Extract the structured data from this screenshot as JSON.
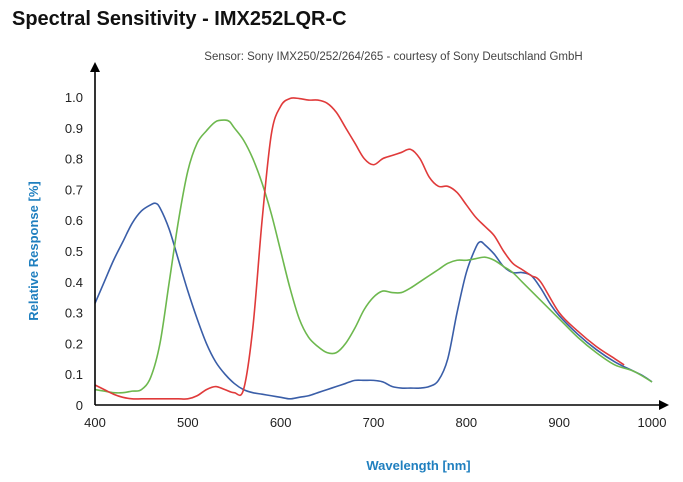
{
  "page_title": "Spectral Sensitivity - IMX252LQR-C",
  "chart_data": {
    "type": "line",
    "subtitle": "Sensor: Sony IMX250/252/264/265 - courtesy of Sony Deutschland GmbH",
    "xlabel": "Wavelength [nm]",
    "ylabel": "Relative Response [%]",
    "xlim": [
      400,
      1000
    ],
    "ylim": [
      0,
      1.0
    ],
    "xticks": [
      "400",
      "500",
      "600",
      "700",
      "800",
      "900",
      "1000"
    ],
    "yticks": [
      "0",
      "0.1",
      "0.2",
      "0.3",
      "0.4",
      "0.5",
      "0.6",
      "0.7",
      "0.8",
      "0.9",
      "1.0"
    ],
    "grid": false,
    "series": [
      {
        "color": "#3a5ea8",
        "x": [
          400,
          410,
          420,
          430,
          440,
          450,
          460,
          465,
          470,
          480,
          490,
          500,
          510,
          520,
          530,
          540,
          550,
          560,
          570,
          580,
          590,
          600,
          610,
          620,
          630,
          640,
          650,
          660,
          670,
          680,
          690,
          700,
          710,
          720,
          730,
          740,
          750,
          760,
          770,
          780,
          790,
          800,
          810,
          815,
          820,
          830,
          840,
          850,
          860,
          870,
          880,
          890,
          900,
          920,
          940,
          960,
          980,
          990,
          1000
        ],
        "y": [
          0.33,
          0.4,
          0.47,
          0.53,
          0.59,
          0.63,
          0.65,
          0.655,
          0.64,
          0.57,
          0.47,
          0.37,
          0.28,
          0.2,
          0.14,
          0.1,
          0.07,
          0.05,
          0.04,
          0.035,
          0.03,
          0.025,
          0.02,
          0.025,
          0.03,
          0.04,
          0.05,
          0.06,
          0.07,
          0.08,
          0.08,
          0.08,
          0.075,
          0.06,
          0.055,
          0.055,
          0.055,
          0.06,
          0.08,
          0.15,
          0.3,
          0.43,
          0.51,
          0.53,
          0.52,
          0.49,
          0.45,
          0.43,
          0.43,
          0.42,
          0.38,
          0.33,
          0.29,
          0.23,
          0.18,
          0.14,
          0.11,
          0.095,
          0.075
        ]
      },
      {
        "color": "#6db84e",
        "x": [
          400,
          410,
          420,
          430,
          440,
          450,
          460,
          470,
          480,
          490,
          500,
          510,
          520,
          530,
          540,
          545,
          550,
          560,
          570,
          580,
          590,
          600,
          610,
          620,
          630,
          640,
          650,
          660,
          670,
          680,
          690,
          700,
          710,
          720,
          730,
          740,
          750,
          760,
          770,
          780,
          790,
          800,
          810,
          820,
          830,
          840,
          850,
          860,
          870,
          880,
          900,
          920,
          940,
          960,
          980,
          1000
        ],
        "y": [
          0.05,
          0.045,
          0.04,
          0.04,
          0.045,
          0.05,
          0.09,
          0.2,
          0.4,
          0.6,
          0.76,
          0.85,
          0.89,
          0.92,
          0.925,
          0.92,
          0.9,
          0.86,
          0.8,
          0.72,
          0.62,
          0.5,
          0.38,
          0.28,
          0.22,
          0.19,
          0.17,
          0.17,
          0.2,
          0.25,
          0.31,
          0.35,
          0.37,
          0.365,
          0.365,
          0.38,
          0.4,
          0.42,
          0.44,
          0.46,
          0.47,
          0.47,
          0.475,
          0.48,
          0.47,
          0.45,
          0.43,
          0.4,
          0.37,
          0.34,
          0.28,
          0.22,
          0.17,
          0.13,
          0.11,
          0.075
        ]
      },
      {
        "color": "#e03a3a",
        "x": [
          400,
          410,
          420,
          430,
          440,
          450,
          460,
          470,
          480,
          490,
          500,
          510,
          520,
          530,
          540,
          550,
          560,
          570,
          580,
          590,
          600,
          610,
          620,
          630,
          640,
          650,
          660,
          670,
          680,
          690,
          700,
          710,
          720,
          730,
          740,
          750,
          760,
          770,
          780,
          790,
          800,
          810,
          820,
          830,
          840,
          850,
          860,
          870,
          880,
          900,
          920,
          940,
          960,
          970
        ],
        "y": [
          0.065,
          0.05,
          0.035,
          0.025,
          0.02,
          0.02,
          0.02,
          0.02,
          0.02,
          0.02,
          0.02,
          0.03,
          0.05,
          0.06,
          0.05,
          0.04,
          0.05,
          0.25,
          0.6,
          0.88,
          0.97,
          0.995,
          0.995,
          0.99,
          0.99,
          0.98,
          0.95,
          0.9,
          0.85,
          0.8,
          0.78,
          0.8,
          0.81,
          0.82,
          0.83,
          0.8,
          0.74,
          0.71,
          0.71,
          0.69,
          0.65,
          0.61,
          0.58,
          0.55,
          0.5,
          0.46,
          0.44,
          0.42,
          0.4,
          0.3,
          0.24,
          0.19,
          0.15,
          0.13
        ]
      }
    ]
  }
}
